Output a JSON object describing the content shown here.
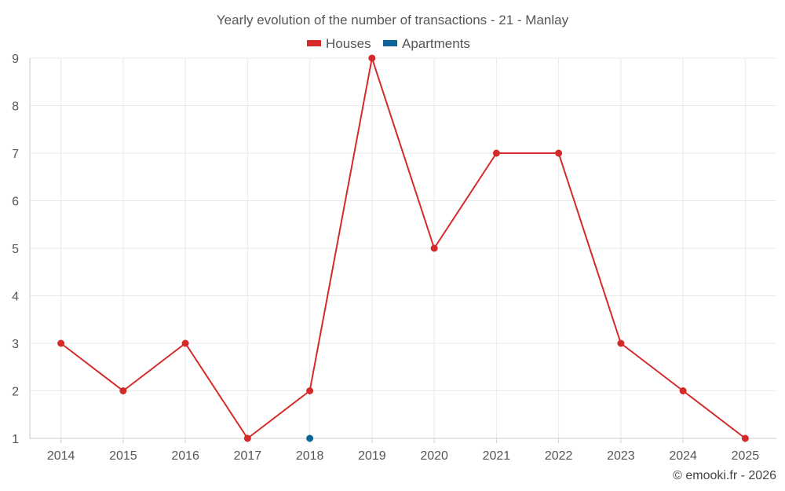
{
  "chart_data": {
    "type": "line",
    "title": "Yearly evolution of the number of transactions - 21 - Manlay",
    "x": [
      "2014",
      "2015",
      "2016",
      "2017",
      "2018",
      "2019",
      "2020",
      "2021",
      "2022",
      "2023",
      "2024",
      "2025"
    ],
    "ylim": [
      1,
      9
    ],
    "yticks": [
      1,
      2,
      3,
      4,
      5,
      6,
      7,
      8,
      9
    ],
    "grid": true,
    "legend_position": "top-center",
    "series": [
      {
        "name": "Houses",
        "color": "#d42a2a",
        "values": [
          3,
          2,
          3,
          1,
          2,
          9,
          5,
          7,
          7,
          3,
          2,
          1
        ]
      },
      {
        "name": "Apartments",
        "color": "#0d6598",
        "values": [
          null,
          null,
          null,
          null,
          1,
          null,
          null,
          null,
          null,
          null,
          null,
          null
        ]
      }
    ]
  },
  "credit": "© emooki.fr - 2026"
}
